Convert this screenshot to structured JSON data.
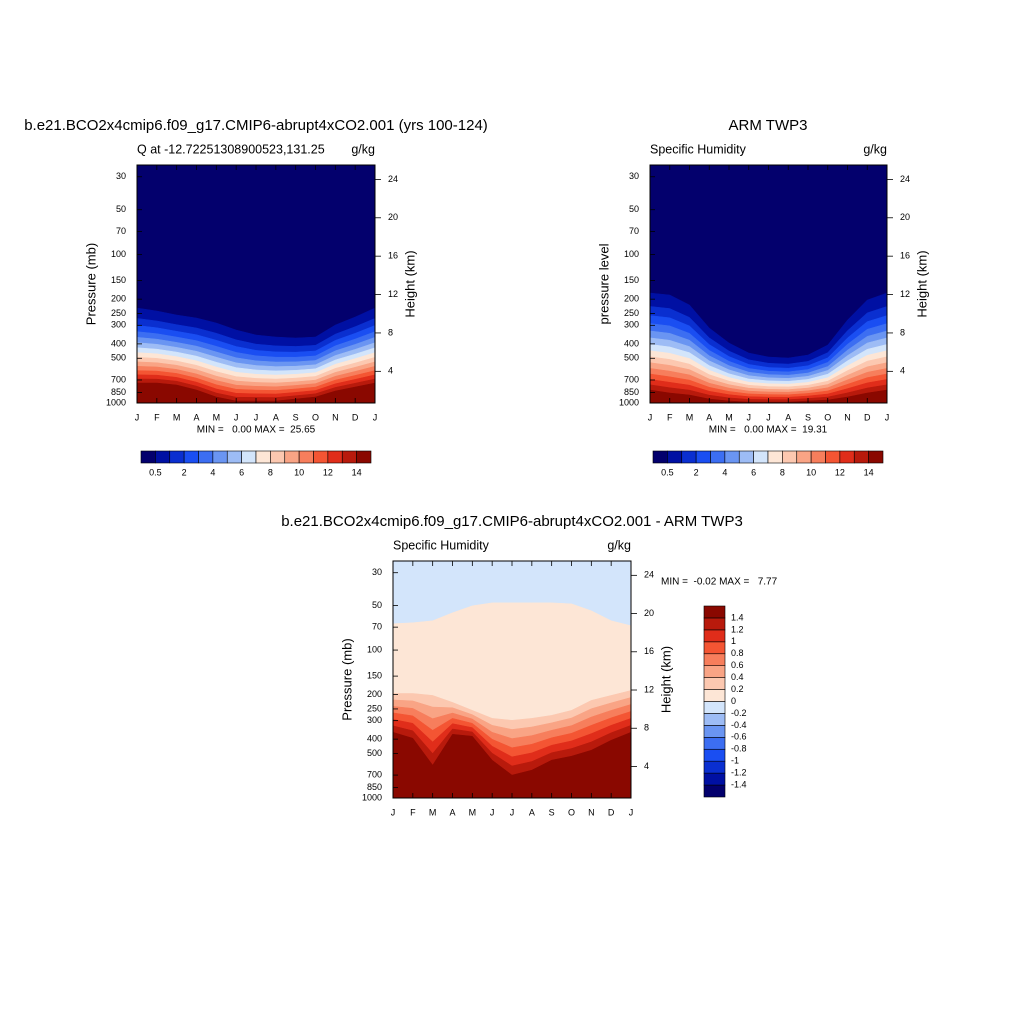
{
  "chart_data": [
    {
      "type": "contour",
      "title": "b.e21.BCO2x4cmip6.f09_g17.CMIP6-abrupt4xCO2.001 (yrs 100-124)",
      "left_string": "Q at -12.72251308900523,131.25",
      "right_string": "g/kg",
      "ylabel": "Pressure (mb)",
      "y2label": "Height (km)",
      "categories": [
        "J",
        "F",
        "M",
        "A",
        "M",
        "J",
        "J",
        "A",
        "S",
        "O",
        "N",
        "D",
        "J"
      ],
      "ylim": [
        1000,
        25
      ],
      "log_y": true,
      "yticks": [
        30,
        50,
        70,
        100,
        150,
        200,
        250,
        300,
        400,
        500,
        700,
        850,
        1000
      ],
      "y2lim": [
        0.7,
        25.5
      ],
      "y2ticks": [
        4,
        8,
        12,
        16,
        20,
        24
      ],
      "stats": "MIN =   0.00 MAX =  25.65",
      "colorbar": {
        "orientation": "horizontal",
        "colors": [
          "#03006d",
          "#0010a3",
          "#0a2fd0",
          "#1a4ef2",
          "#3c6ef2",
          "#6a95f2",
          "#9dbcf5",
          "#d3e5fb",
          "#fde6d6",
          "#fcc8b0",
          "#f9a485",
          "#f77e5c",
          "#f45533",
          "#e02d1a",
          "#b81a0c",
          "#8a0800"
        ],
        "labels": [
          0.5,
          2,
          4,
          6,
          8,
          10,
          12,
          14
        ]
      }
    },
    {
      "type": "contour",
      "title": "ARM TWP3",
      "left_string": "Specific Humidity",
      "right_string": "g/kg",
      "ylabel": "pressure level",
      "y2label": "Height (km)",
      "categories": [
        "J",
        "F",
        "M",
        "A",
        "M",
        "J",
        "J",
        "A",
        "S",
        "O",
        "N",
        "D",
        "J"
      ],
      "ylim": [
        1000,
        25
      ],
      "log_y": true,
      "yticks": [
        30,
        50,
        70,
        100,
        150,
        200,
        250,
        300,
        400,
        500,
        700,
        850,
        1000
      ],
      "y2lim": [
        0.7,
        25.5
      ],
      "y2ticks": [
        4,
        8,
        12,
        16,
        20,
        24
      ],
      "stats": "MIN =   0.00 MAX =  19.31",
      "colorbar": {
        "orientation": "horizontal",
        "colors": [
          "#03006d",
          "#0010a3",
          "#0a2fd0",
          "#1a4ef2",
          "#3c6ef2",
          "#6a95f2",
          "#9dbcf5",
          "#d3e5fb",
          "#fde6d6",
          "#fcc8b0",
          "#f9a485",
          "#f77e5c",
          "#f45533",
          "#e02d1a",
          "#b81a0c",
          "#8a0800"
        ],
        "labels": [
          0.5,
          2,
          4,
          6,
          8,
          10,
          12,
          14
        ]
      }
    },
    {
      "type": "contour",
      "title": "b.e21.BCO2x4cmip6.f09_g17.CMIP6-abrupt4xCO2.001 - ARM TWP3",
      "left_string": "Specific Humidity",
      "right_string": "g/kg",
      "ylabel": "Pressure (mb)",
      "y2label": "Height (km)",
      "categories": [
        "J",
        "F",
        "M",
        "A",
        "M",
        "J",
        "J",
        "A",
        "S",
        "O",
        "N",
        "D",
        "J"
      ],
      "ylim": [
        1000,
        25
      ],
      "log_y": true,
      "yticks": [
        30,
        50,
        70,
        100,
        150,
        200,
        250,
        300,
        400,
        500,
        700,
        850,
        1000
      ],
      "y2lim": [
        0.7,
        25.5
      ],
      "y2ticks": [
        4,
        8,
        12,
        16,
        20,
        24
      ],
      "stats": "MIN =  -0.02 MAX =   7.77",
      "colorbar": {
        "orientation": "vertical",
        "colors": [
          "#03006d",
          "#0010a3",
          "#0a2fd0",
          "#1a4ef2",
          "#3c6ef2",
          "#6a95f2",
          "#9dbcf5",
          "#d3e5fb",
          "#fde6d6",
          "#fcc8b0",
          "#f9a485",
          "#f77e5c",
          "#f45533",
          "#e02d1a",
          "#b81a0c",
          "#8a0800"
        ],
        "labels": [
          -1.4,
          -1.2,
          -1,
          -0.8,
          -0.6,
          -0.4,
          -0.2,
          0,
          0.2,
          0.4,
          0.6,
          0.8,
          1,
          1.2,
          1.4
        ]
      }
    }
  ]
}
